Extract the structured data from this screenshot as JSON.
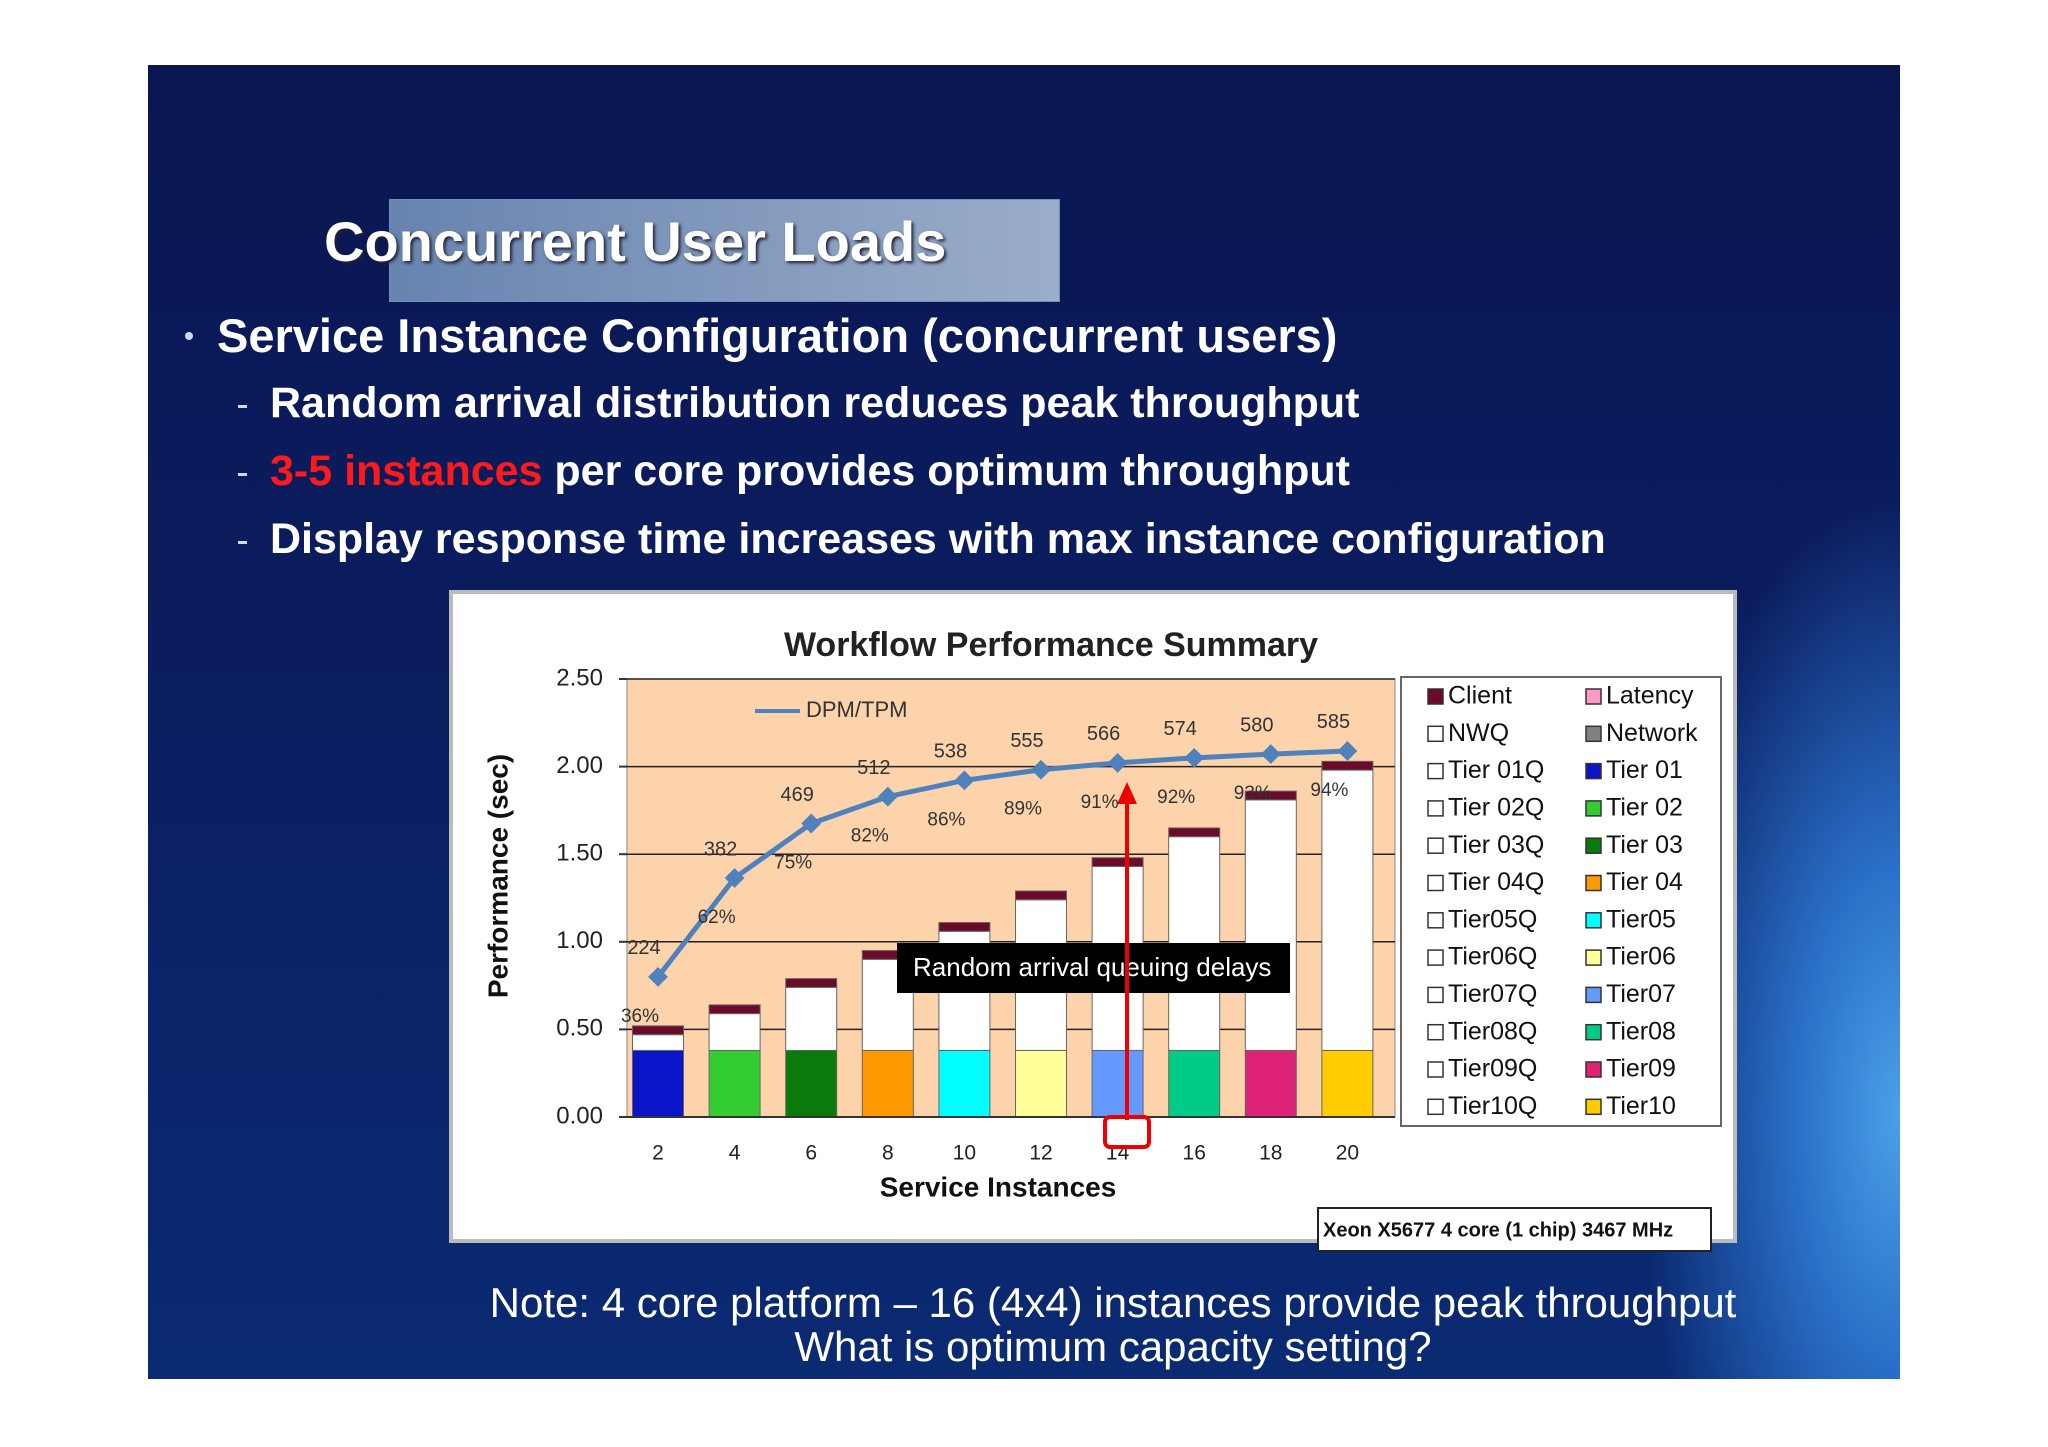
{
  "slide": {
    "title": "Concurrent User Loads",
    "bullet": "Service Instance Configuration (concurrent users)",
    "subbullets": [
      {
        "text": "Random arrival distribution reduces peak throughput"
      },
      {
        "highlight": "3-5 instances",
        "text": " per core provides optimum throughput"
      },
      {
        "text": "Display response time increases with max instance configuration"
      }
    ],
    "note": [
      "Note: 4 core platform – 16 (4x4) instances provide peak throughput",
      "What is optimum capacity setting?"
    ]
  },
  "chart_data": {
    "type": "bar",
    "stacked": true,
    "title": "Workflow Performance Summary",
    "xlabel": "Service Instances",
    "ylabel": "Performance (sec)",
    "categories": [
      "2",
      "4",
      "6",
      "8",
      "10",
      "12",
      "14",
      "16",
      "18",
      "20"
    ],
    "ylim": [
      0,
      2.5
    ],
    "yticks": [
      {
        "value": 0,
        "label": "0.00"
      },
      {
        "value": 0.5,
        "label": "0.50"
      },
      {
        "value": 1,
        "label": "1.00"
      },
      {
        "value": 1.5,
        "label": "1.50"
      },
      {
        "value": 2,
        "label": "2.00"
      },
      {
        "value": 2.5,
        "label": "2.50"
      }
    ],
    "y2lim": [
      0,
      700
    ],
    "grid": true,
    "series": [
      {
        "name": "Client",
        "color": "#6b0a2a",
        "values": [
          0.05,
          0.05,
          0.05,
          0.05,
          0.05,
          0.05,
          0.05,
          0.05,
          0.05,
          0.05
        ]
      },
      {
        "name": "Latency",
        "color": "#ff99cc",
        "values": [
          null,
          null,
          null,
          null,
          null,
          null,
          null,
          null,
          null,
          null
        ]
      },
      {
        "name": "NWQ",
        "color": "#ffffff",
        "values": [
          null,
          null,
          null,
          null,
          null,
          null,
          null,
          null,
          null,
          null
        ]
      },
      {
        "name": "Network",
        "color": "#808080",
        "values": [
          null,
          null,
          null,
          null,
          null,
          null,
          null,
          null,
          null,
          null
        ]
      },
      {
        "name": "Tier 01Q",
        "color": "#ffffff",
        "values": [
          0.09,
          null,
          null,
          null,
          null,
          null,
          null,
          null,
          null,
          null
        ]
      },
      {
        "name": "Tier 01",
        "color": "#0a14c8",
        "values": [
          0.38,
          null,
          null,
          null,
          null,
          null,
          null,
          null,
          null,
          null
        ]
      },
      {
        "name": "Tier 02Q",
        "color": "#ffffff",
        "values": [
          null,
          0.21,
          null,
          null,
          null,
          null,
          null,
          null,
          null,
          null
        ]
      },
      {
        "name": "Tier 02",
        "color": "#33cc33",
        "values": [
          null,
          0.38,
          null,
          null,
          null,
          null,
          null,
          null,
          null,
          null
        ]
      },
      {
        "name": "Tier 03Q",
        "color": "#ffffff",
        "values": [
          null,
          null,
          0.36,
          null,
          null,
          null,
          null,
          null,
          null,
          null
        ]
      },
      {
        "name": "Tier 03",
        "color": "#0a7a0a",
        "values": [
          null,
          null,
          0.38,
          null,
          null,
          null,
          null,
          null,
          null,
          null
        ]
      },
      {
        "name": "Tier 04Q",
        "color": "#ffffff",
        "values": [
          null,
          null,
          null,
          0.52,
          null,
          null,
          null,
          null,
          null,
          null
        ]
      },
      {
        "name": "Tier 04",
        "color": "#ff9900",
        "values": [
          null,
          null,
          null,
          0.38,
          null,
          null,
          null,
          null,
          null,
          null
        ]
      },
      {
        "name": "Tier05Q",
        "color": "#ffffff",
        "values": [
          null,
          null,
          null,
          null,
          0.68,
          null,
          null,
          null,
          null,
          null
        ]
      },
      {
        "name": "Tier05",
        "color": "#00ffff",
        "values": [
          null,
          null,
          null,
          null,
          0.38,
          null,
          null,
          null,
          null,
          null
        ]
      },
      {
        "name": "Tier06Q",
        "color": "#ffffff",
        "values": [
          null,
          null,
          null,
          null,
          null,
          0.86,
          null,
          null,
          null,
          null
        ]
      },
      {
        "name": "Tier06",
        "color": "#ffff99",
        "values": [
          null,
          null,
          null,
          null,
          null,
          0.38,
          null,
          null,
          null,
          null
        ]
      },
      {
        "name": "Tier07Q",
        "color": "#ffffff",
        "values": [
          null,
          null,
          null,
          null,
          null,
          null,
          1.05,
          null,
          null,
          null
        ]
      },
      {
        "name": "Tier07",
        "color": "#6699ff",
        "values": [
          null,
          null,
          null,
          null,
          null,
          null,
          0.38,
          null,
          null,
          null
        ]
      },
      {
        "name": "Tier08Q",
        "color": "#ffffff",
        "values": [
          null,
          null,
          null,
          null,
          null,
          null,
          null,
          1.22,
          null,
          null
        ]
      },
      {
        "name": "Tier08",
        "color": "#00cc88",
        "values": [
          null,
          null,
          null,
          null,
          null,
          null,
          null,
          0.38,
          null,
          null
        ]
      },
      {
        "name": "Tier09Q",
        "color": "#ffffff",
        "values": [
          null,
          null,
          null,
          null,
          null,
          null,
          null,
          null,
          1.43,
          null
        ]
      },
      {
        "name": "Tier09",
        "color": "#dd2277",
        "values": [
          null,
          null,
          null,
          null,
          null,
          null,
          null,
          null,
          0.38,
          null
        ]
      },
      {
        "name": "Tier10Q",
        "color": "#ffffff",
        "values": [
          null,
          null,
          null,
          null,
          null,
          null,
          null,
          null,
          null,
          1.6
        ]
      },
      {
        "name": "Tier10",
        "color": "#ffcc00",
        "values": [
          null,
          null,
          null,
          null,
          null,
          null,
          null,
          null,
          null,
          0.38
        ]
      },
      {
        "name": "DPM/TPM",
        "type": "line",
        "axis": "y2",
        "color": "#4f81bd",
        "values": [
          224,
          382,
          469,
          512,
          538,
          555,
          566,
          574,
          580,
          585
        ]
      }
    ],
    "utilization": {
      "values": [
        36,
        62,
        75,
        82,
        86,
        89,
        91,
        92,
        93,
        94
      ],
      "value_labels": [
        "36%",
        "62%",
        "75%",
        "82%",
        "86%",
        "89%",
        "91%",
        "92%",
        "93%",
        "94%"
      ]
    },
    "annotation": "Random arrival queuing delays",
    "footnote": "Xeon X5677 4 core (1 chip) 3467 MHz"
  }
}
